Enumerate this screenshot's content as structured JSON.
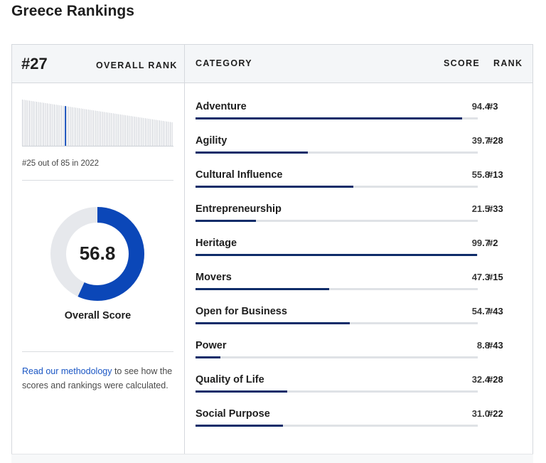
{
  "page": {
    "title": "Greece Rankings"
  },
  "overall": {
    "rank": "#27",
    "rank_label": "OVERALL RANK",
    "history_caption": "#25 out of 85 in 2022",
    "score": "56.8",
    "score_fraction": 0.568,
    "score_label": "Overall Score",
    "methodology_link": "Read our methodology",
    "methodology_text": " to see how the scores and rankings were calculated."
  },
  "table": {
    "headers": {
      "category": "CATEGORY",
      "score": "SCORE",
      "rank": "RANK"
    },
    "rows": [
      {
        "name": "Adventure",
        "score": "94.4",
        "rank": "#3",
        "value": 94.4
      },
      {
        "name": "Agility",
        "score": "39.7",
        "rank": "#28",
        "value": 39.7
      },
      {
        "name": "Cultural Influence",
        "score": "55.8",
        "rank": "#13",
        "value": 55.8
      },
      {
        "name": "Entrepreneurship",
        "score": "21.5",
        "rank": "#33",
        "value": 21.5
      },
      {
        "name": "Heritage",
        "score": "99.7",
        "rank": "#2",
        "value": 99.7
      },
      {
        "name": "Movers",
        "score": "47.3",
        "rank": "#15",
        "value": 47.3
      },
      {
        "name": "Open for Business",
        "score": "54.7",
        "rank": "#43",
        "value": 54.7
      },
      {
        "name": "Power",
        "score": "8.8",
        "rank": "#43",
        "value": 8.8
      },
      {
        "name": "Quality of Life",
        "score": "32.4",
        "rank": "#28",
        "value": 32.4
      },
      {
        "name": "Social Purpose",
        "score": "31.0",
        "rank": "#22",
        "value": 31.0
      }
    ]
  },
  "colors": {
    "bar_fill": "#0f2c69",
    "track": "#dfe2e6",
    "donut_fill": "#0b47b8",
    "donut_track": "#e6e8ec",
    "spark_bar": "#c6cad1",
    "spark_highlight": "#0b47b8",
    "link": "#1a56c4"
  },
  "history": {
    "total": 85,
    "highlight_position": 25
  }
}
